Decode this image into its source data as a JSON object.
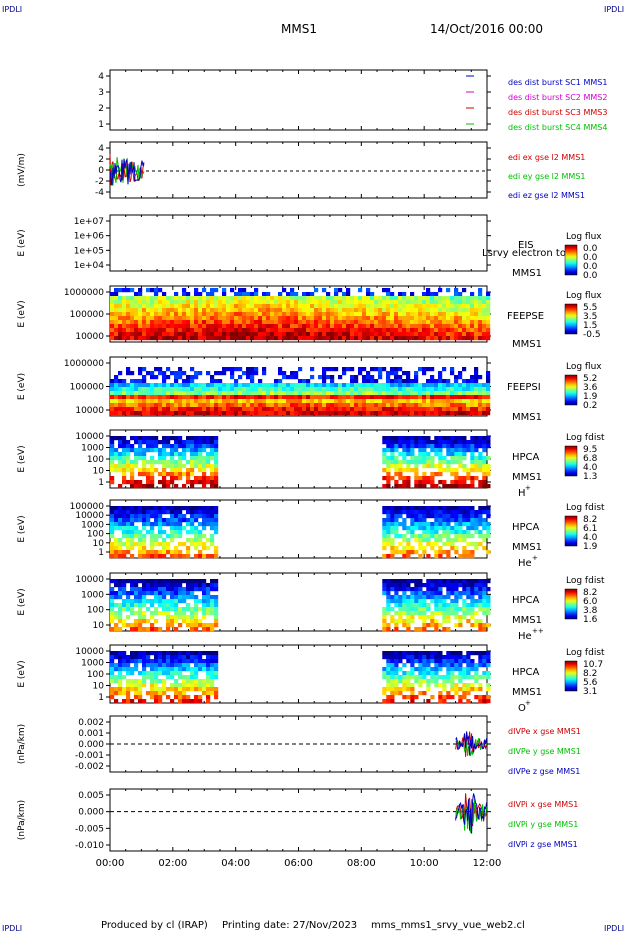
{
  "corner_label": "IPDLI",
  "header": {
    "spacecraft": "MMS1",
    "date": "14/Oct/2016 00:00"
  },
  "footer": {
    "produced_by": "Produced by cl (IRAP)",
    "printing_date": "Printing date: 27/Nov/2023",
    "script_name": "mms_mms1_srvy_vue_web2.cl"
  },
  "colors": {
    "red": "#d00000",
    "green": "#00c000",
    "blue": "#0000c0",
    "magenta": "#d000d0"
  },
  "chart_data": [
    {
      "type": "line",
      "panel": "burst",
      "xlim": [
        "00:00",
        "12:00"
      ],
      "ylim": [
        0.5,
        4.5
      ],
      "yticks": [
        "4",
        "3",
        "2",
        "1"
      ],
      "ylabel": "",
      "series": [
        {
          "name": "des dist burst SC1 MMS1",
          "color": "#0000c0",
          "level": 4
        },
        {
          "name": "des dist burst SC2 MMS2",
          "color": "#d000d0",
          "level": 3
        },
        {
          "name": "des dist burst SC3 MMS3",
          "color": "#d00000",
          "level": 2
        },
        {
          "name": "des dist burst SC4 MMS4",
          "color": "#00c000",
          "level": 1
        }
      ]
    },
    {
      "type": "line",
      "panel": "edi",
      "xlim": [
        "00:00",
        "12:00"
      ],
      "ylim": [
        -5,
        5
      ],
      "yticks": [
        "4",
        "2",
        "0",
        "-2",
        "-4"
      ],
      "ylabel": "(mV/m)",
      "data_interval": [
        "00:00",
        "01:05"
      ],
      "series": [
        {
          "name": "edi ex gse l2 MMS1",
          "color": "#d00000"
        },
        {
          "name": "edi ey gse l2 MMS1",
          "color": "#00c000"
        },
        {
          "name": "edi ez gse l2 MMS1",
          "color": "#0000c0"
        }
      ]
    },
    {
      "type": "heatmap",
      "panel": "eis",
      "ylabel": "E (eV)",
      "yticks": [
        "1e+07",
        "1e+06",
        "1e+05",
        "1e+04"
      ],
      "instrument": "EIS",
      "spacecraft": "MMS1",
      "cbar_title": "Log flux",
      "cbar_ticks": [
        "0.0",
        "0.0",
        "0.0",
        "0.0"
      ],
      "overlay_text": "Lsrvy electron to"
    },
    {
      "type": "heatmap",
      "panel": "feepse",
      "ylabel": "E (eV)",
      "yticks": [
        "1000000",
        "100000",
        "10000"
      ],
      "instrument": "FEEPSE",
      "spacecraft": "MMS1",
      "cbar_title": "Log flux",
      "cbar_ticks": [
        "5.5",
        "3.5",
        "1.5",
        "-0.5"
      ],
      "data_interval": [
        "00:00",
        "12:00"
      ]
    },
    {
      "type": "heatmap",
      "panel": "feepsi",
      "ylabel": "E (eV)",
      "yticks": [
        "1000000",
        "100000",
        "10000"
      ],
      "instrument": "FEEPSI",
      "spacecraft": "MMS1",
      "cbar_title": "Log flux",
      "cbar_ticks": [
        "5.2",
        "3.6",
        "1.9",
        "0.2"
      ],
      "data_interval": [
        "00:00",
        "12:00"
      ]
    },
    {
      "type": "heatmap",
      "panel": "hpca_h",
      "ylabel": "E (eV)",
      "yticks": [
        "10000",
        "1000",
        "100",
        "10",
        "1"
      ],
      "instrument": "HPCA",
      "spacecraft": "MMS1",
      "species": "H",
      "charge": "+",
      "cbar_title": "Log fdist",
      "cbar_ticks": [
        "9.5",
        "6.8",
        "4.0",
        "1.3"
      ],
      "data_intervals": [
        [
          "00:00",
          "03:20"
        ],
        [
          "08:40",
          "12:00"
        ]
      ]
    },
    {
      "type": "heatmap",
      "panel": "hpca_he",
      "ylabel": "E (eV)",
      "yticks": [
        "100000",
        "10000",
        "1000",
        "100",
        "10",
        "1"
      ],
      "instrument": "HPCA",
      "spacecraft": "MMS1",
      "species": "He",
      "charge": "+",
      "cbar_title": "Log fdist",
      "cbar_ticks": [
        "8.2",
        "6.1",
        "4.0",
        "1.9"
      ],
      "data_intervals": [
        [
          "00:00",
          "03:20"
        ],
        [
          "08:40",
          "12:00"
        ]
      ]
    },
    {
      "type": "heatmap",
      "panel": "hpca_hepp",
      "ylabel": "E (eV)",
      "yticks": [
        "10000",
        "1000",
        "100",
        "10"
      ],
      "instrument": "HPCA",
      "spacecraft": "MMS1",
      "species": "He",
      "charge": "++",
      "cbar_title": "Log fdist",
      "cbar_ticks": [
        "8.2",
        "6.0",
        "3.8",
        "1.6"
      ],
      "data_intervals": [
        [
          "00:00",
          "03:20"
        ],
        [
          "08:40",
          "12:00"
        ]
      ]
    },
    {
      "type": "heatmap",
      "panel": "hpca_o",
      "ylabel": "E (eV)",
      "yticks": [
        "10000",
        "1000",
        "100",
        "10",
        "1"
      ],
      "instrument": "HPCA",
      "spacecraft": "MMS1",
      "species": "O",
      "charge": "+",
      "cbar_title": "Log fdist",
      "cbar_ticks": [
        "10.7",
        "8.2",
        "5.6",
        "3.1"
      ],
      "data_intervals": [
        [
          "00:00",
          "03:20"
        ],
        [
          "08:40",
          "12:00"
        ]
      ]
    },
    {
      "type": "line",
      "panel": "divpe",
      "ylabel": "(nPa/km)",
      "ylim": [
        -0.003,
        0.003
      ],
      "yticks": [
        "0.002",
        "0.001",
        "0.000",
        "-0.001",
        "-0.002"
      ],
      "data_interval": [
        "11:00",
        "12:00"
      ],
      "series": [
        {
          "name": "dIVPe x gse MMS1",
          "color": "#d00000"
        },
        {
          "name": "dIVPe y gse MMS1",
          "color": "#00c000"
        },
        {
          "name": "dIVPe z gse MMS1",
          "color": "#0000c0"
        }
      ]
    },
    {
      "type": "line",
      "panel": "divpi",
      "ylabel": "(nPa/km)",
      "ylim": [
        -0.012,
        0.008
      ],
      "yticks": [
        "0.005",
        "0.000",
        "-0.005",
        "-0.010"
      ],
      "data_interval": [
        "11:00",
        "12:00"
      ],
      "series": [
        {
          "name": "dIVPi x gse MMS1",
          "color": "#d00000"
        },
        {
          "name": "dIVPi y gse MMS1",
          "color": "#00c000"
        },
        {
          "name": "dIVPi z gse MMS1",
          "color": "#0000c0"
        }
      ]
    }
  ],
  "x_axis": {
    "ticks": [
      "00:00",
      "02:00",
      "04:00",
      "06:00",
      "08:00",
      "10:00",
      "12:00"
    ]
  }
}
